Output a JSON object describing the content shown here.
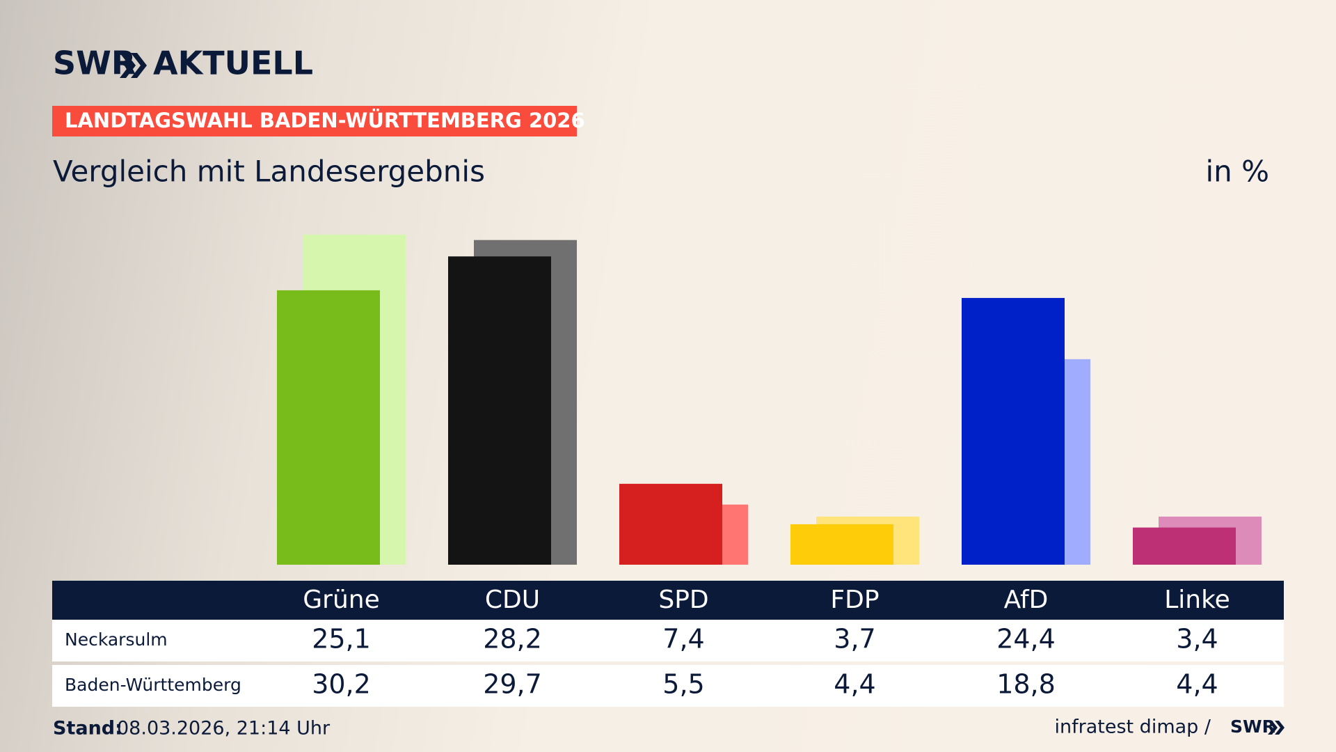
{
  "brand": {
    "name": "SWR",
    "title": "AKTUELL"
  },
  "chart_data": {
    "type": "bar",
    "title": "LANDTAGSWAHL BADEN-WÜRTTEMBERG 2026",
    "subtitle": "Vergleich mit Landesergebnis",
    "unit": "in %",
    "categories": [
      "Grüne",
      "CDU",
      "SPD",
      "FDP",
      "AfD",
      "Linke"
    ],
    "series": [
      {
        "name": "Neckarsulm",
        "colors": [
          "#78bc1b",
          "#141414",
          "#d61f1f",
          "#ffcc0a",
          "#0021c8",
          "#bd3075"
        ],
        "values": [
          25.1,
          28.2,
          7.4,
          3.7,
          24.4,
          3.4
        ],
        "value_labels": [
          "25,1",
          "28,2",
          "7,4",
          "3,7",
          "24,4",
          "3,4"
        ]
      },
      {
        "name": "Baden-Württemberg",
        "colors": [
          "#d6f5ad",
          "#717070",
          "#fe7572",
          "#ffe47b",
          "#a0adff",
          "#dd8cba"
        ],
        "values": [
          30.2,
          29.7,
          5.5,
          4.4,
          18.8,
          4.4
        ],
        "value_labels": [
          "30,2",
          "29,7",
          "5,5",
          "4,4",
          "18,8",
          "4,4"
        ]
      }
    ]
  },
  "footer": {
    "stand_label": "Stand:",
    "stand": "08.03.2026, 21:14 Uhr",
    "source": "infratest dimap /",
    "brand": "SWR"
  }
}
